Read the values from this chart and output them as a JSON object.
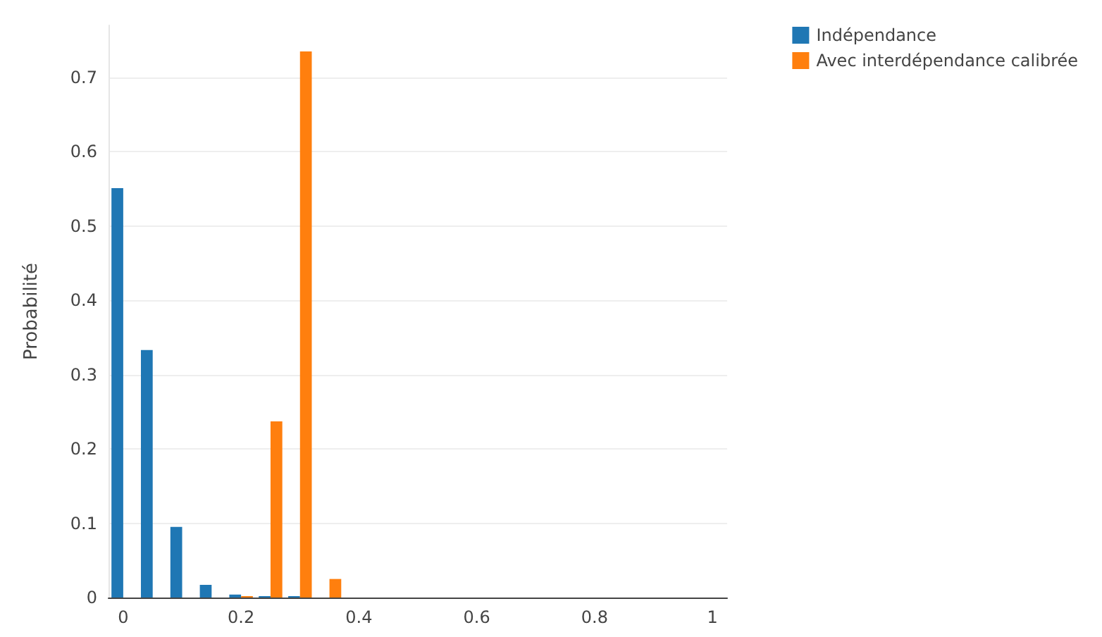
{
  "chart_data": {
    "type": "bar",
    "ylabel": "Probabilité",
    "x": [
      0,
      0.05,
      0.1,
      0.15,
      0.2,
      0.25,
      0.3,
      0.35,
      0.4,
      0.45,
      0.5,
      0.55,
      0.6,
      0.65,
      0.7,
      0.75,
      0.8,
      0.85,
      0.9,
      0.95,
      1
    ],
    "series": [
      {
        "name": "Indépendance",
        "color": "#1f77b4",
        "values": [
          0.551,
          0.333,
          0.095,
          0.017,
          0.004,
          0.002,
          0.002,
          0,
          0,
          0,
          0,
          0,
          0,
          0,
          0,
          0,
          0,
          0,
          0,
          0,
          0
        ]
      },
      {
        "name": "Avec interdépendance calibrée",
        "color": "#ff7f0e",
        "values": [
          0,
          0,
          0,
          0,
          0.002,
          0.237,
          0.735,
          0.025,
          0,
          0,
          0,
          0,
          0,
          0,
          0,
          0,
          0,
          0,
          0,
          0,
          0
        ]
      }
    ],
    "xlim": [
      -0.025,
      1.025
    ],
    "xticks": [
      0,
      0.2,
      0.4,
      0.6,
      0.8,
      1
    ],
    "ylim": [
      0,
      0.77
    ],
    "yticks": [
      0,
      0.1,
      0.2,
      0.3,
      0.4,
      0.5,
      0.6,
      0.7
    ],
    "grid": "y",
    "legend": "top right"
  }
}
